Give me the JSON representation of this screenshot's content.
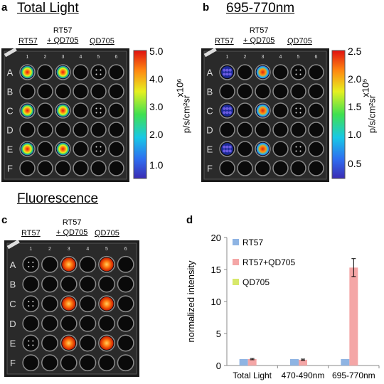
{
  "panels": {
    "a": {
      "label": "a",
      "title": "Total Light",
      "col_groups": [
        "RT57",
        "RT57",
        "+ QD705",
        "QD705"
      ],
      "colorbar": {
        "ticks": [
          "5.0",
          "4.0",
          "3.0",
          "2.0",
          "1.0"
        ],
        "unit_line1": "x10⁶",
        "unit_line2": "p/s/cm²sr"
      }
    },
    "b": {
      "label": "b",
      "title": "695-770nm",
      "col_groups": [
        "RT57",
        "RT57",
        "+ QD705",
        "QD705"
      ],
      "colorbar": {
        "ticks": [
          "2.5",
          "2.0",
          "1.5",
          "1.0",
          "0.5"
        ],
        "unit_line1": "x10⁵",
        "unit_line2": "p/s/cm²sr"
      }
    },
    "c": {
      "label": "c",
      "title": "Fluorescence",
      "col_groups": [
        "RT57",
        "RT57",
        "+ QD705",
        "QD705"
      ]
    },
    "d": {
      "label": "d"
    }
  },
  "plate": {
    "rows": [
      "A",
      "B",
      "C",
      "D",
      "E",
      "F"
    ],
    "cols": [
      "1",
      "2",
      "3",
      "4",
      "5",
      "6"
    ]
  },
  "chart_data": {
    "type": "bar",
    "categories": [
      "Total Light",
      "470-490nm",
      "695-770nm"
    ],
    "series": [
      {
        "name": "RT57",
        "values": [
          1.0,
          1.0,
          1.0
        ],
        "color": "#8eb4e3"
      },
      {
        "name": "RT57+QD705",
        "values": [
          1.0,
          0.9,
          15.3
        ],
        "color": "#f4a6a6",
        "errors": [
          0.1,
          0.1,
          1.4
        ]
      },
      {
        "name": "QD705",
        "values": [
          0,
          0,
          0
        ],
        "color": "#d7e86a"
      }
    ],
    "ylabel": "normalized intensity",
    "ylim": [
      0,
      20
    ],
    "yticks": [
      "0",
      "5",
      "10",
      "15",
      "20"
    ],
    "legend": "top-left"
  }
}
